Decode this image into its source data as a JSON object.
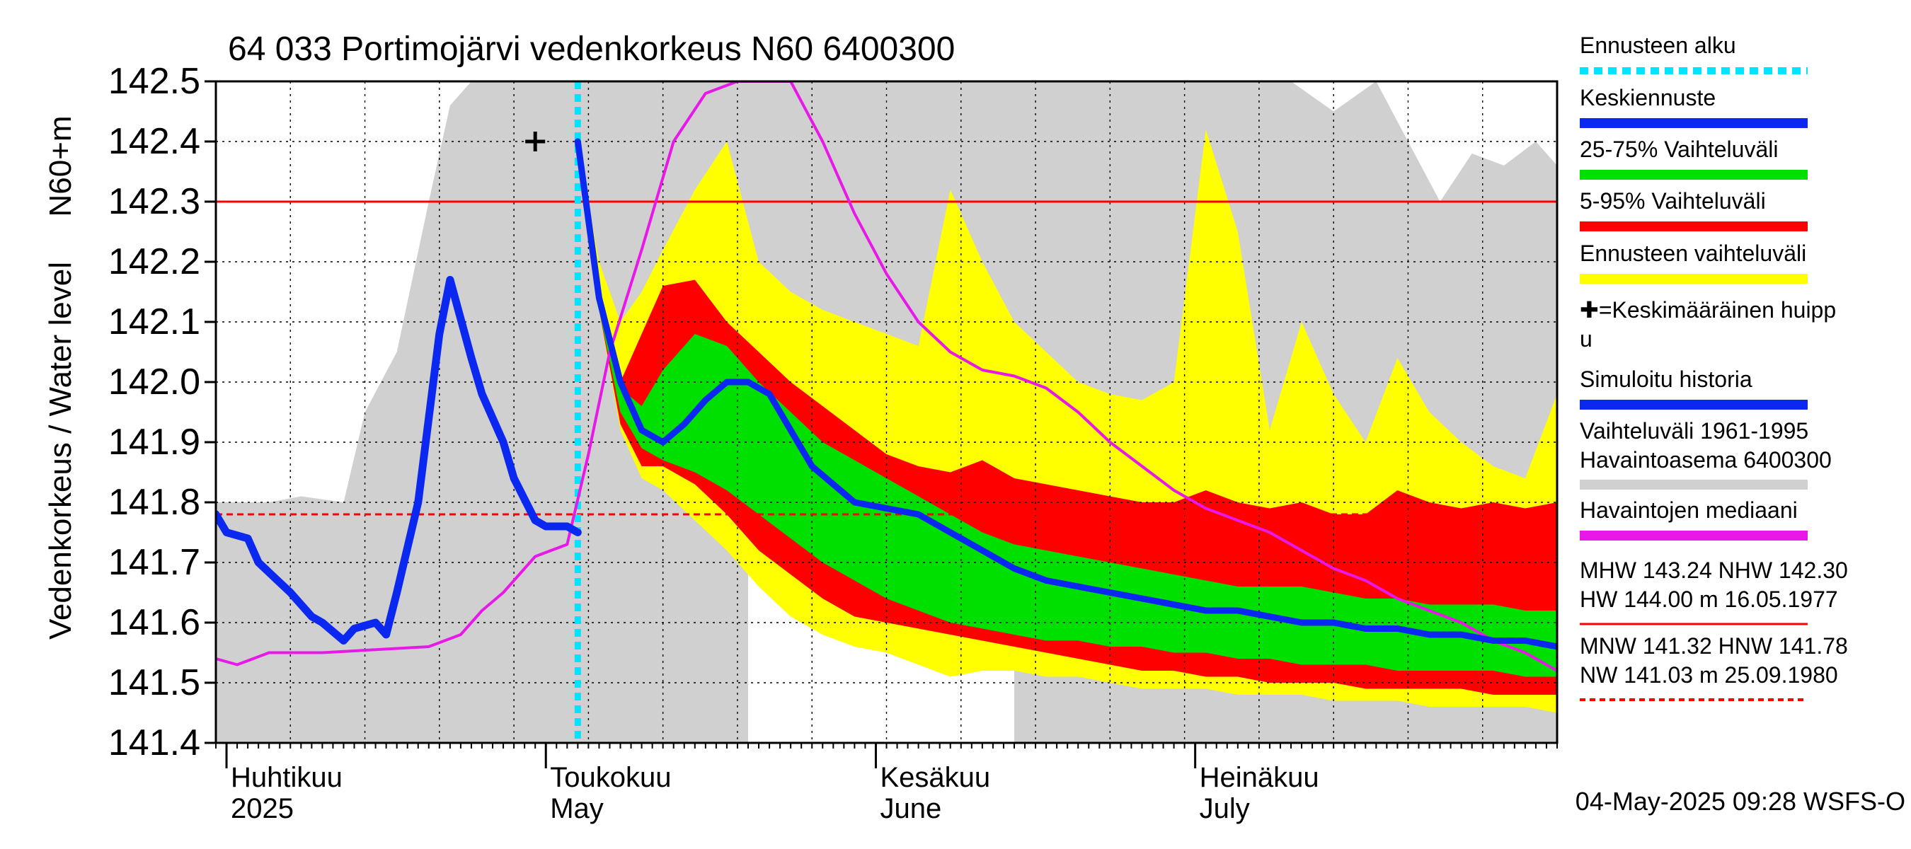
{
  "chart_data": {
    "type": "area",
    "title": "64 033 Portimojärvi vedenkorkeus N60 6400300",
    "ylabel_main": "Vedenkorkeus / Water level",
    "ylabel_unit": "N60+m",
    "ylim": [
      141.4,
      142.5
    ],
    "yticks": [
      "142.5",
      "142.4",
      "142.3",
      "142.2",
      "142.1",
      "142.0",
      "141.9",
      "141.8",
      "141.7",
      "141.6",
      "141.5",
      "141.4"
    ],
    "x_start": "2025-03-31",
    "x_end": "2025-08-04",
    "forecast_start": "2025-05-04",
    "month_labels": [
      {
        "date": "2025-04-01",
        "fi": "Huhtikuu",
        "en": "2025"
      },
      {
        "date": "2025-05-01",
        "fi": "Toukokuu",
        "en": "May"
      },
      {
        "date": "2025-06-01",
        "fi": "Kesäkuu",
        "en": "June"
      },
      {
        "date": "2025-07-01",
        "fi": "Heinäkuu",
        "en": "July"
      }
    ],
    "reference_lines": {
      "NHW": 142.3,
      "HNW": 141.78
    },
    "peak_marker": {
      "date": "2025-04-30",
      "value": 142.4
    },
    "history_range_1961_1995": {
      "x": [
        "2025-03-31",
        "2025-04-05",
        "2025-04-08",
        "2025-04-12",
        "2025-04-14",
        "2025-04-17",
        "2025-04-20",
        "2025-04-22",
        "2025-04-24",
        "2025-04-27",
        "2025-05-01",
        "2025-05-06",
        "2025-05-12",
        "2025-05-16",
        "2025-05-20",
        "2025-05-24",
        "2025-05-30",
        "2025-06-05",
        "2025-06-10",
        "2025-06-15",
        "2025-06-20",
        "2025-06-25",
        "2025-07-01",
        "2025-07-05",
        "2025-07-10",
        "2025-07-14",
        "2025-07-18",
        "2025-07-21",
        "2025-07-24",
        "2025-07-27",
        "2025-07-30",
        "2025-08-02",
        "2025-08-04"
      ],
      "upper": [
        141.8,
        141.8,
        141.81,
        141.8,
        141.95,
        142.05,
        142.3,
        142.46,
        142.5,
        142.5,
        142.5,
        142.5,
        142.5,
        142.5,
        142.5,
        142.5,
        142.5,
        142.5,
        142.5,
        142.5,
        142.5,
        142.5,
        142.5,
        142.5,
        142.5,
        142.45,
        142.5,
        142.4,
        142.3,
        142.38,
        142.36,
        142.4,
        142.36
      ],
      "lower": [
        141.4,
        141.4,
        141.4,
        141.4,
        141.4,
        141.4,
        141.4,
        141.4,
        141.4,
        141.4,
        141.4,
        141.4,
        141.4,
        141.4,
        141.4,
        141.4,
        141.4,
        141.4,
        141.4,
        141.4,
        141.4,
        141.4,
        141.4,
        141.4,
        141.4,
        141.4,
        141.4,
        141.4,
        141.4,
        141.4,
        141.4,
        141.4,
        141.4
      ]
    },
    "observed_since_may": {
      "x": [
        "2025-05-20",
        "2025-05-21",
        "2025-05-24",
        "2025-05-27",
        "2025-05-30",
        "2025-06-02",
        "2025-06-05",
        "2025-06-08",
        "2025-06-11",
        "2025-06-14"
      ],
      "upper": [
        141.8,
        141.9,
        141.88,
        141.84,
        141.82,
        141.78,
        141.72,
        141.66,
        141.62,
        141.55
      ],
      "lower": [
        141.4,
        141.4,
        141.4,
        141.4,
        141.4,
        141.4,
        141.4,
        141.4,
        141.4,
        141.4
      ]
    },
    "series": [
      {
        "name": "Simuloitu historia",
        "color": "#0a28f0",
        "x": [
          "2025-03-31",
          "2025-04-01",
          "2025-04-03",
          "2025-04-04",
          "2025-04-07",
          "2025-04-09",
          "2025-04-10",
          "2025-04-12",
          "2025-04-13",
          "2025-04-15",
          "2025-04-16",
          "2025-04-17",
          "2025-04-19",
          "2025-04-21",
          "2025-04-22",
          "2025-04-24",
          "2025-04-25",
          "2025-04-27",
          "2025-04-28",
          "2025-04-30",
          "2025-05-01",
          "2025-05-03",
          "2025-05-04"
        ],
        "values": [
          141.78,
          141.75,
          141.74,
          141.7,
          141.65,
          141.61,
          141.6,
          141.57,
          141.59,
          141.6,
          141.58,
          141.65,
          141.8,
          142.08,
          142.17,
          142.04,
          141.98,
          141.9,
          141.84,
          141.77,
          141.76,
          141.76,
          141.75
        ]
      },
      {
        "name": "Keskiennuste",
        "color": "#0a28f0",
        "x": [
          "2025-05-04",
          "2025-05-06",
          "2025-05-08",
          "2025-05-10",
          "2025-05-12",
          "2025-05-14",
          "2025-05-16",
          "2025-05-18",
          "2025-05-20",
          "2025-05-22",
          "2025-05-24",
          "2025-05-26",
          "2025-05-28",
          "2025-05-30",
          "2025-06-02",
          "2025-06-05",
          "2025-06-08",
          "2025-06-11",
          "2025-06-14",
          "2025-06-17",
          "2025-06-20",
          "2025-06-23",
          "2025-06-26",
          "2025-06-29",
          "2025-07-02",
          "2025-07-05",
          "2025-07-08",
          "2025-07-11",
          "2025-07-14",
          "2025-07-17",
          "2025-07-20",
          "2025-07-23",
          "2025-07-26",
          "2025-07-29",
          "2025-08-01",
          "2025-08-04"
        ],
        "values": [
          142.4,
          142.14,
          142.0,
          141.92,
          141.9,
          141.93,
          141.97,
          142.0,
          142.0,
          141.98,
          141.92,
          141.86,
          141.83,
          141.8,
          141.79,
          141.78,
          141.75,
          141.72,
          141.69,
          141.67,
          141.66,
          141.65,
          141.64,
          141.63,
          141.62,
          141.62,
          141.61,
          141.6,
          141.6,
          141.59,
          141.59,
          141.58,
          141.58,
          141.57,
          141.57,
          141.56
        ]
      },
      {
        "name": "Havaintojen mediaani",
        "color": "#e818e8",
        "x": [
          "2025-03-31",
          "2025-04-02",
          "2025-04-05",
          "2025-04-10",
          "2025-04-20",
          "2025-04-23",
          "2025-04-25",
          "2025-04-27",
          "2025-04-30",
          "2025-05-03",
          "2025-05-05",
          "2025-05-07",
          "2025-05-10",
          "2025-05-13",
          "2025-05-16",
          "2025-05-19",
          "2025-05-24",
          "2025-05-27",
          "2025-05-30",
          "2025-06-02",
          "2025-06-05",
          "2025-06-08",
          "2025-06-11",
          "2025-06-14",
          "2025-06-17",
          "2025-06-20",
          "2025-06-23",
          "2025-06-26",
          "2025-06-29",
          "2025-07-02",
          "2025-07-05",
          "2025-07-08",
          "2025-07-11",
          "2025-07-14",
          "2025-07-17",
          "2025-07-20",
          "2025-07-23",
          "2025-07-26",
          "2025-07-29",
          "2025-08-01",
          "2025-08-04"
        ],
        "values": [
          141.54,
          141.53,
          141.55,
          141.55,
          141.56,
          141.58,
          141.62,
          141.65,
          141.71,
          141.73,
          141.88,
          142.05,
          142.22,
          142.4,
          142.48,
          142.5,
          142.5,
          142.4,
          142.28,
          142.18,
          142.1,
          142.05,
          142.02,
          142.01,
          141.99,
          141.95,
          141.9,
          141.86,
          141.82,
          141.79,
          141.77,
          141.75,
          141.72,
          141.69,
          141.67,
          141.64,
          141.62,
          141.6,
          141.57,
          141.55,
          141.52
        ]
      }
    ],
    "forecast_bands": {
      "x": [
        "2025-05-04",
        "2025-05-06",
        "2025-05-08",
        "2025-05-10",
        "2025-05-12",
        "2025-05-15",
        "2025-05-18",
        "2025-05-21",
        "2025-05-24",
        "2025-05-27",
        "2025-05-30",
        "2025-06-02",
        "2025-06-05",
        "2025-06-08",
        "2025-06-11",
        "2025-06-14",
        "2025-06-17",
        "2025-06-20",
        "2025-06-23",
        "2025-06-26",
        "2025-06-29",
        "2025-07-02",
        "2025-07-05",
        "2025-07-08",
        "2025-07-11",
        "2025-07-14",
        "2025-07-17",
        "2025-07-20",
        "2025-07-23",
        "2025-07-26",
        "2025-07-29",
        "2025-08-01",
        "2025-08-04"
      ],
      "ennuste_max": [
        142.4,
        142.2,
        142.1,
        142.15,
        142.22,
        142.32,
        142.4,
        142.2,
        142.15,
        142.12,
        142.1,
        142.08,
        142.06,
        142.32,
        142.2,
        142.1,
        142.05,
        142.0,
        141.98,
        141.97,
        142.0,
        142.42,
        142.25,
        141.92,
        142.1,
        141.98,
        141.9,
        142.04,
        141.95,
        141.9,
        141.86,
        141.84,
        141.98
      ],
      "p95": [
        142.4,
        142.14,
        142.0,
        142.08,
        142.16,
        142.17,
        142.1,
        142.05,
        142.0,
        141.96,
        141.92,
        141.88,
        141.86,
        141.85,
        141.87,
        141.84,
        141.83,
        141.82,
        141.81,
        141.8,
        141.8,
        141.82,
        141.8,
        141.79,
        141.8,
        141.78,
        141.78,
        141.82,
        141.8,
        141.79,
        141.8,
        141.79,
        141.8
      ],
      "p75": [
        142.4,
        142.13,
        141.99,
        141.96,
        142.02,
        142.08,
        142.06,
        142.0,
        141.95,
        141.9,
        141.87,
        141.84,
        141.81,
        141.78,
        141.75,
        141.73,
        141.72,
        141.71,
        141.7,
        141.69,
        141.68,
        141.67,
        141.66,
        141.66,
        141.66,
        141.65,
        141.64,
        141.64,
        141.63,
        141.63,
        141.63,
        141.62,
        141.62
      ],
      "p25": [
        142.4,
        142.12,
        141.95,
        141.89,
        141.87,
        141.85,
        141.82,
        141.78,
        141.74,
        141.7,
        141.67,
        141.64,
        141.62,
        141.6,
        141.59,
        141.58,
        141.57,
        141.57,
        141.56,
        141.56,
        141.55,
        141.55,
        141.54,
        141.54,
        141.53,
        141.53,
        141.53,
        141.52,
        141.52,
        141.52,
        141.52,
        141.51,
        141.51
      ],
      "p05": [
        142.4,
        142.12,
        141.93,
        141.86,
        141.86,
        141.83,
        141.78,
        141.72,
        141.68,
        141.64,
        141.61,
        141.6,
        141.59,
        141.58,
        141.57,
        141.56,
        141.55,
        141.54,
        141.53,
        141.52,
        141.52,
        141.51,
        141.51,
        141.5,
        141.5,
        141.5,
        141.49,
        141.49,
        141.49,
        141.49,
        141.48,
        141.48,
        141.48
      ],
      "ennuste_min": [
        142.4,
        142.12,
        141.92,
        141.84,
        141.82,
        141.77,
        141.72,
        141.66,
        141.61,
        141.58,
        141.56,
        141.55,
        141.53,
        141.51,
        141.52,
        141.52,
        141.51,
        141.51,
        141.5,
        141.49,
        141.49,
        141.49,
        141.48,
        141.48,
        141.48,
        141.47,
        141.47,
        141.47,
        141.46,
        141.46,
        141.46,
        141.46,
        141.45
      ]
    },
    "legend": [
      {
        "label": "Ennusteen alku",
        "style": "dotted",
        "color": "#00e5ff"
      },
      {
        "label": "Keskiennuste",
        "style": "solid",
        "color": "#0a28f0"
      },
      {
        "label": "25-75% Vaihteluväli",
        "style": "solid",
        "color": "#00e000"
      },
      {
        "label": "5-95% Vaihteluväli",
        "style": "solid",
        "color": "#ff0000"
      },
      {
        "label": "Ennusteen vaihteluväli",
        "style": "solid",
        "color": "#ffff00"
      },
      {
        "label": "✚=Keskimääräinen huipp",
        "label2": "u",
        "style": "none",
        "color": "#000000"
      },
      {
        "label": "Simuloitu historia",
        "style": "solid",
        "color": "#0a28f0"
      },
      {
        "label": "Vaihteluväli 1961-1995",
        "label2": " Havaintoasema 6400300",
        "style": "solid",
        "color": "#d0d0d0"
      },
      {
        "label": "Havaintojen mediaani",
        "style": "solid",
        "color": "#e818e8"
      },
      {
        "label": "MHW 143.24 NHW 142.30",
        "label2": "HW 144.00 m 16.05.1977",
        "style": "thin",
        "color": "#ff0000"
      },
      {
        "label": "MNW 141.32 HNW 141.78",
        "label2": "NW 141.03 m 25.09.1980",
        "style": "dashed",
        "color": "#ff0000"
      }
    ],
    "footer": "04-May-2025 09:28 WSFS-O",
    "colors": {
      "history_range": "#d0d0d0",
      "ennuste": "#ffff00",
      "p5_95": "#ff0000",
      "p25_75": "#00e000",
      "mean_forecast": "#0a28f0",
      "median": "#e818e8",
      "forecast_start": "#00e5ff",
      "reference": "#ff0000"
    }
  }
}
